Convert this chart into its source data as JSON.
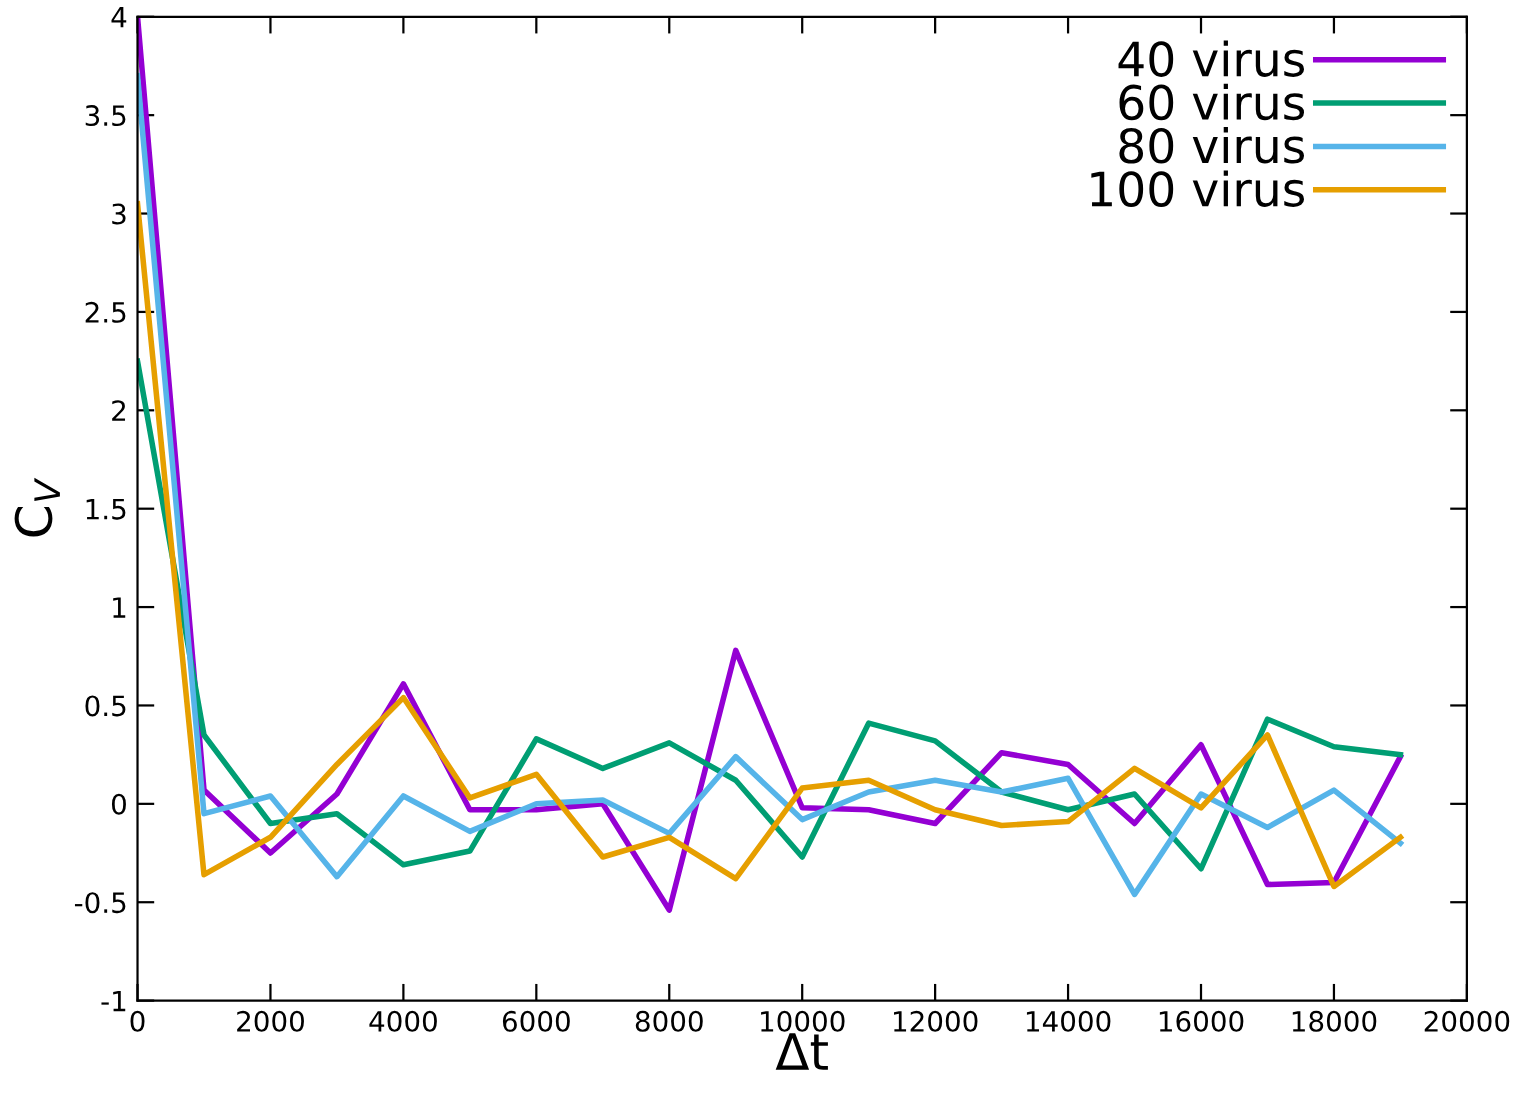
{
  "chart_data": {
    "type": "line",
    "xlabel": "Δt",
    "ylabel": "C$_{V}$",
    "x": [
      0,
      1000,
      2000,
      3000,
      4000,
      5000,
      6000,
      7000,
      8000,
      9000,
      10000,
      11000,
      12000,
      13000,
      14000,
      15000,
      16000,
      17000,
      18000,
      19000
    ],
    "series": [
      {
        "name": "40 virus",
        "color": "#9400d3",
        "values": [
          4.0,
          0.07,
          -0.25,
          0.05,
          0.61,
          -0.03,
          -0.03,
          0.0,
          -0.54,
          0.78,
          -0.02,
          -0.03,
          -0.1,
          0.26,
          0.2,
          -0.1,
          0.3,
          -0.41,
          -0.4,
          0.24
        ]
      },
      {
        "name": "60 virus",
        "color": "#009e73",
        "values": [
          2.25,
          0.35,
          -0.1,
          -0.05,
          -0.31,
          -0.24,
          0.33,
          0.18,
          0.31,
          0.12,
          -0.27,
          0.41,
          0.32,
          0.06,
          -0.03,
          0.05,
          -0.33,
          0.43,
          0.29,
          0.25
        ]
      },
      {
        "name": "80 virus",
        "color": "#56b4e9",
        "values": [
          3.7,
          -0.05,
          0.04,
          -0.37,
          0.04,
          -0.14,
          0.0,
          0.02,
          -0.15,
          0.24,
          -0.08,
          0.06,
          0.12,
          0.06,
          0.13,
          -0.46,
          0.05,
          -0.12,
          0.07,
          -0.2
        ]
      },
      {
        "name": "100 virus",
        "color": "#e69f00",
        "values": [
          3.05,
          -0.36,
          -0.17,
          0.2,
          0.54,
          0.03,
          0.15,
          -0.27,
          -0.17,
          -0.38,
          0.08,
          0.12,
          -0.03,
          -0.11,
          -0.09,
          0.18,
          -0.02,
          0.35,
          -0.42,
          -0.17
        ]
      }
    ],
    "xlim": [
      0,
      20000
    ],
    "xticks": [
      0,
      2000,
      4000,
      6000,
      8000,
      10000,
      12000,
      14000,
      16000,
      18000,
      20000
    ],
    "ylim": [
      -1,
      4
    ],
    "yticks": [
      -1,
      {
        "value": -0.5,
        "label": "-0.5"
      },
      0,
      {
        "value": 0.5,
        "label": "0.5"
      },
      1,
      {
        "value": 1.5,
        "label": "1.5"
      },
      2,
      {
        "value": 2.5,
        "label": "2.5"
      },
      3,
      {
        "value": 3.5,
        "label": "3.5"
      },
      4
    ],
    "grid": false,
    "legend": "top right",
    "marker": "none",
    "line_style": "solid"
  }
}
